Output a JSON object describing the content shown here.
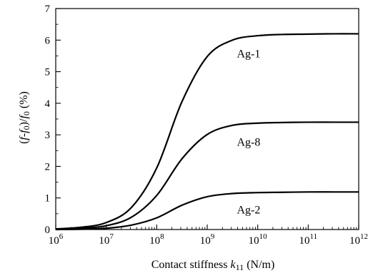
{
  "chart_data": {
    "type": "line",
    "title": "",
    "xlabel": {
      "main": "Contact stiffness ",
      "var": "k",
      "sub": "11",
      "unit": " (N/m)"
    },
    "ylabel": {
      "p1": "(",
      "f": "f",
      "dash": "-",
      "f0": "f",
      "sub0": "0",
      "p2": ")/",
      "f1": "f",
      "sub1": "0",
      "pct": " (%)"
    },
    "x_scale": "log",
    "xlim": [
      1000000,
      1000000000000
    ],
    "ylim": [
      0,
      7
    ],
    "x_ticks": [
      {
        "base": "10",
        "exp": "6"
      },
      {
        "base": "10",
        "exp": "7"
      },
      {
        "base": "10",
        "exp": "8"
      },
      {
        "base": "10",
        "exp": "9"
      },
      {
        "base": "10",
        "exp": "10"
      },
      {
        "base": "10",
        "exp": "11"
      },
      {
        "base": "10",
        "exp": "12"
      }
    ],
    "y_ticks": [
      "0",
      "1",
      "2",
      "3",
      "4",
      "5",
      "6",
      "7"
    ],
    "grid": false,
    "x": [
      1000000,
      3160000,
      10000000,
      31600000,
      100000000,
      316000000,
      1000000000,
      3160000000,
      10000000000,
      31600000000,
      100000000000,
      316000000000,
      1000000000000
    ],
    "series": [
      {
        "name": "Ag-1",
        "color": "#000000",
        "values": [
          0.02,
          0.07,
          0.22,
          0.7,
          1.95,
          4.05,
          5.48,
          6.0,
          6.14,
          6.18,
          6.19,
          6.2,
          6.2
        ]
      },
      {
        "name": "Ag-8",
        "color": "#000000",
        "values": [
          0.01,
          0.04,
          0.12,
          0.39,
          1.08,
          2.24,
          3.01,
          3.3,
          3.37,
          3.39,
          3.4,
          3.4,
          3.4
        ]
      },
      {
        "name": "Ag-2",
        "color": "#000000",
        "values": [
          0.0,
          0.01,
          0.04,
          0.14,
          0.37,
          0.77,
          1.04,
          1.14,
          1.17,
          1.18,
          1.19,
          1.19,
          1.19
        ]
      }
    ]
  }
}
